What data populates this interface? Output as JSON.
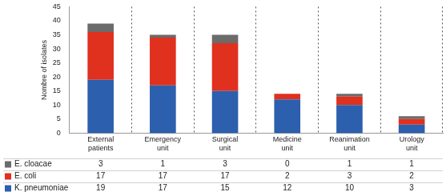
{
  "chart_data": {
    "type": "bar",
    "stacked": true,
    "categories": [
      "External patients",
      "Emergency unit",
      "Surgical unit",
      "Medicine unit",
      "Reanimation unit",
      "Urology unit"
    ],
    "series": [
      {
        "name": "K. pneumoniae",
        "color": "#2c5fad",
        "values": [
          19,
          17,
          15,
          12,
          10,
          3
        ]
      },
      {
        "name": "E. coli",
        "color": "#e0301e",
        "values": [
          17,
          17,
          17,
          2,
          3,
          2
        ]
      },
      {
        "name": "E. cloacae",
        "color": "#6b6b6b",
        "values": [
          3,
          1,
          3,
          0,
          1,
          1
        ]
      }
    ],
    "y_label": "Nombre of isolates",
    "ylim": [
      0,
      45
    ],
    "yticks": [
      0,
      5,
      10,
      15,
      20,
      25,
      30,
      35,
      40,
      45
    ],
    "grid": true,
    "legend": "bottom"
  }
}
